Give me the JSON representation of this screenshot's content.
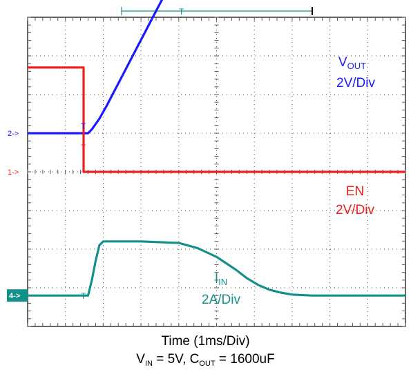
{
  "chart_data": {
    "type": "line",
    "grid": true,
    "timebase_label": "Time  (1ms/Div)",
    "conditions": {
      "vin_symbol": "V",
      "vin_sub": "IN",
      "vin_value": " = 5V, ",
      "cout_symbol": "C",
      "cout_sub": "OUT",
      "cout_value": " = 1600uF"
    },
    "divisions": {
      "x": 10,
      "y": 8
    },
    "trigger_marker": "T",
    "x_unit": "ms",
    "channels": [
      {
        "id": "ch2",
        "marker": "2->",
        "color": "#1a1aff",
        "label_main": "V",
        "label_sub": "OUT",
        "label_scale": "2V/Div",
        "volts_per_div": 2,
        "baseline_div": 5.0,
        "x": [
          0,
          1.6,
          1.7,
          1.9,
          2.1,
          2.3,
          2.5,
          2.7,
          2.9,
          3.1,
          3.3,
          3.5,
          3.7,
          3.9,
          4.1,
          4.3,
          4.6,
          5.0,
          5.3,
          5.6,
          6.0,
          7.0,
          8.0,
          9.0,
          10.0
        ],
        "y": [
          0,
          0,
          0.2,
          0.75,
          1.45,
          2.2,
          2.95,
          3.7,
          4.45,
          5.2,
          5.95,
          6.7,
          7.45,
          8.15,
          8.85,
          9.45,
          10.1,
          10.6,
          10.8,
          10.9,
          11.0,
          11.0,
          11.0,
          11.0,
          11.0
        ]
      },
      {
        "id": "ch1",
        "marker": "1->",
        "color": "#ee1c1c",
        "label_main": "EN",
        "label_scale": "2V/Div",
        "volts_per_div": 2,
        "baseline_div": 4.0,
        "x": [
          0,
          1.48,
          1.48,
          10.0
        ],
        "y": [
          5.4,
          5.4,
          0,
          0
        ]
      },
      {
        "id": "ch4",
        "marker": "4->",
        "color": "#14908a",
        "label_main": "I",
        "label_sub": "IN",
        "label_scale": "2A/Div",
        "amps_per_div": 2,
        "baseline_div": 0.8,
        "x": [
          0,
          1.45,
          1.6,
          1.7,
          1.8,
          1.9,
          2.0,
          3.0,
          4.0,
          4.5,
          5.0,
          5.5,
          5.8,
          6.1,
          6.4,
          6.7,
          7.0,
          7.5,
          8.0,
          9.0,
          10.0
        ],
        "y": [
          0,
          0,
          0,
          0.8,
          1.8,
          2.6,
          2.8,
          2.8,
          2.72,
          2.45,
          2.0,
          1.35,
          0.9,
          0.55,
          0.3,
          0.15,
          0.05,
          0,
          0,
          0,
          0
        ]
      }
    ]
  }
}
